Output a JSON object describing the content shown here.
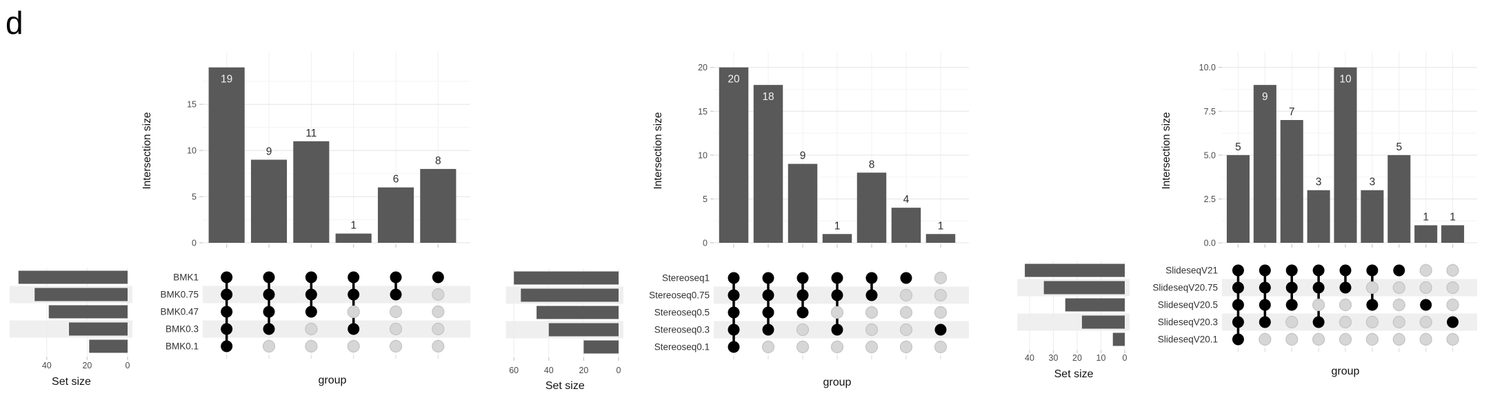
{
  "figure_label": "d",
  "colors": {
    "bar": "#595959",
    "dot_filled": "#000000",
    "dot_empty_fill": "#d6d6d6",
    "dot_empty_stroke": "#c3c3c3",
    "connector": "#000000",
    "stripe": "#efefef",
    "grid_major": "#e3e3e3",
    "grid_minor": "#f4f4f4",
    "grid_column": "#f0f0f0",
    "tick_mark": "#c9c9c9",
    "tick_text": "#4d4d4d",
    "title_text": "#111111",
    "set_name_text": "#333333",
    "bar_label_outside": "#2e2e2e",
    "bar_label_inside": "#f2f2f2",
    "background": "#ffffff"
  },
  "chart_data": [
    {
      "type": "upset",
      "sets": [
        "BMK1",
        "BMK0.75",
        "BMK0.47",
        "BMK0.3",
        "BMK0.1"
      ],
      "set_sizes": [
        54,
        46,
        39,
        29,
        19
      ],
      "set_size_axis": {
        "label": "Set size",
        "ticks": [
          40,
          20,
          0
        ],
        "max": 57
      },
      "intersection_axis": {
        "label": "Intersection size",
        "tick_values": [
          0,
          5,
          10,
          15
        ],
        "tick_labels": [
          "0",
          "5",
          "10",
          "15"
        ],
        "max": 19.95,
        "minor_step": 2.5
      },
      "group_axis_label": "group",
      "intersections": [
        {
          "size": 19,
          "label": "19",
          "members": [
            0,
            1,
            2,
            3,
            4
          ],
          "label_inside": true
        },
        {
          "size": 9,
          "label": "9",
          "members": [
            0,
            1,
            2,
            3
          ],
          "label_inside": false
        },
        {
          "size": 11,
          "label": "11",
          "members": [
            0,
            1,
            2
          ],
          "label_inside": false
        },
        {
          "size": 1,
          "label": "1",
          "members": [
            0,
            1,
            3
          ],
          "label_inside": false
        },
        {
          "size": 6,
          "label": "6",
          "members": [
            0,
            1
          ],
          "label_inside": false
        },
        {
          "size": 8,
          "label": "8",
          "members": [
            0
          ],
          "label_inside": false
        }
      ]
    },
    {
      "type": "upset",
      "sets": [
        "Stereoseq1",
        "Stereoseq0.75",
        "Stereoseq0.5",
        "Stereoseq0.3",
        "Stereoseq0.1"
      ],
      "set_sizes": [
        60,
        56,
        47,
        40,
        20
      ],
      "set_size_axis": {
        "label": "Set size",
        "ticks": [
          60,
          40,
          20,
          0
        ],
        "max": 63
      },
      "intersection_axis": {
        "label": "Intersection size",
        "tick_values": [
          0,
          5,
          10,
          15,
          20
        ],
        "tick_labels": [
          "0",
          "5",
          "10",
          "15",
          "20"
        ],
        "max": 21,
        "minor_step": 2.5
      },
      "group_axis_label": "group",
      "intersections": [
        {
          "size": 20,
          "label": "20",
          "members": [
            0,
            1,
            2,
            3,
            4
          ],
          "label_inside": true
        },
        {
          "size": 18,
          "label": "18",
          "members": [
            0,
            1,
            2,
            3
          ],
          "label_inside": true
        },
        {
          "size": 9,
          "label": "9",
          "members": [
            0,
            1,
            2
          ],
          "label_inside": false
        },
        {
          "size": 1,
          "label": "1",
          "members": [
            0,
            1,
            3
          ],
          "label_inside": false
        },
        {
          "size": 8,
          "label": "8",
          "members": [
            0,
            1
          ],
          "label_inside": false
        },
        {
          "size": 4,
          "label": "4",
          "members": [
            0
          ],
          "label_inside": false
        },
        {
          "size": 1,
          "label": "1",
          "members": [
            3
          ],
          "label_inside": false
        }
      ]
    },
    {
      "type": "upset",
      "sets": [
        "SlideseqV21",
        "SlideseqV20.75",
        "SlideseqV20.5",
        "SlideseqV20.3",
        "SlideseqV20.1"
      ],
      "set_sizes": [
        42,
        34,
        25,
        18,
        5
      ],
      "set_size_axis": {
        "label": "Set size",
        "ticks": [
          40,
          30,
          20,
          10,
          0
        ],
        "max": 44
      },
      "intersection_axis": {
        "label": "Intersection size",
        "tick_values": [
          0,
          2.5,
          5,
          7.5,
          10
        ],
        "tick_labels": [
          "0.0",
          "2.5",
          "5.0",
          "7.5",
          "10.0"
        ],
        "max": 10.5,
        "minor_step": 1.25
      },
      "group_axis_label": "group",
      "intersections": [
        {
          "size": 5,
          "label": "5",
          "members": [
            0,
            1,
            2,
            3,
            4
          ],
          "label_inside": false
        },
        {
          "size": 9,
          "label": "9",
          "members": [
            0,
            1,
            2,
            3
          ],
          "label_inside": true
        },
        {
          "size": 7,
          "label": "7",
          "members": [
            0,
            1,
            2
          ],
          "label_inside": false
        },
        {
          "size": 3,
          "label": "3",
          "members": [
            0,
            1,
            3
          ],
          "label_inside": false
        },
        {
          "size": 10,
          "label": "10",
          "members": [
            0,
            1
          ],
          "label_inside": true
        },
        {
          "size": 3,
          "label": "3",
          "members": [
            0,
            2
          ],
          "label_inside": false
        },
        {
          "size": 5,
          "label": "5",
          "members": [
            0
          ],
          "label_inside": false
        },
        {
          "size": 1,
          "label": "1",
          "members": [
            2
          ],
          "label_inside": false
        },
        {
          "size": 1,
          "label": "1",
          "members": [
            3
          ],
          "label_inside": false
        }
      ]
    }
  ]
}
